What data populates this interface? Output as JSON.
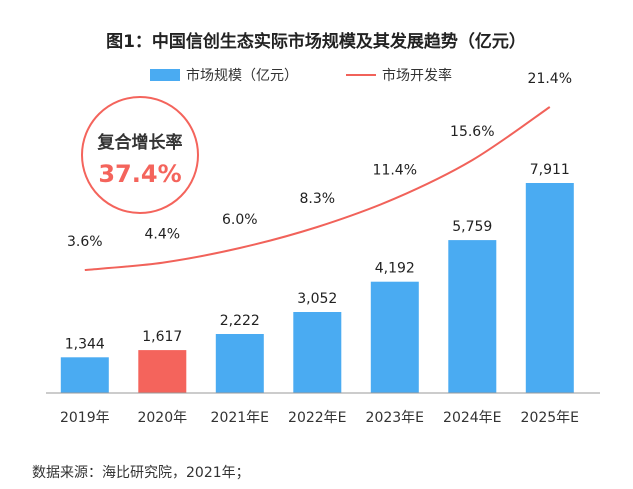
{
  "chart_data": {
    "type": "bar",
    "title": "图1：中国信创生态实际市场规模及其发展趋势（亿元）",
    "categories": [
      "2019年",
      "2020年",
      "2021年E",
      "2022年E",
      "2023年E",
      "2024年E",
      "2025年E"
    ],
    "series": [
      {
        "name": "市场规模（亿元）",
        "type": "bar",
        "values": [
          1344,
          1617,
          2222,
          3052,
          4192,
          5759,
          7911
        ],
        "value_labels": [
          "1,344",
          "1,617",
          "2,222",
          "3,052",
          "4,192",
          "5,759",
          "7,911"
        ],
        "color": "#4AABF2",
        "highlight_index": 1,
        "highlight_color": "#F4645C"
      },
      {
        "name": "市场开发率",
        "type": "line",
        "values": [
          3.6,
          4.4,
          6.0,
          8.3,
          11.4,
          15.6,
          21.4
        ],
        "value_labels": [
          "3.6%",
          "4.4%",
          "6.0%",
          "8.3%",
          "11.4%",
          "15.6%",
          "21.4%"
        ],
        "color": "#F1625A"
      }
    ],
    "legend": {
      "position": "top"
    },
    "grid": false,
    "annotation": {
      "label": "复合增长率",
      "value": "37.4%"
    }
  },
  "source_note": "数据来源：海比研究院，2021年；"
}
